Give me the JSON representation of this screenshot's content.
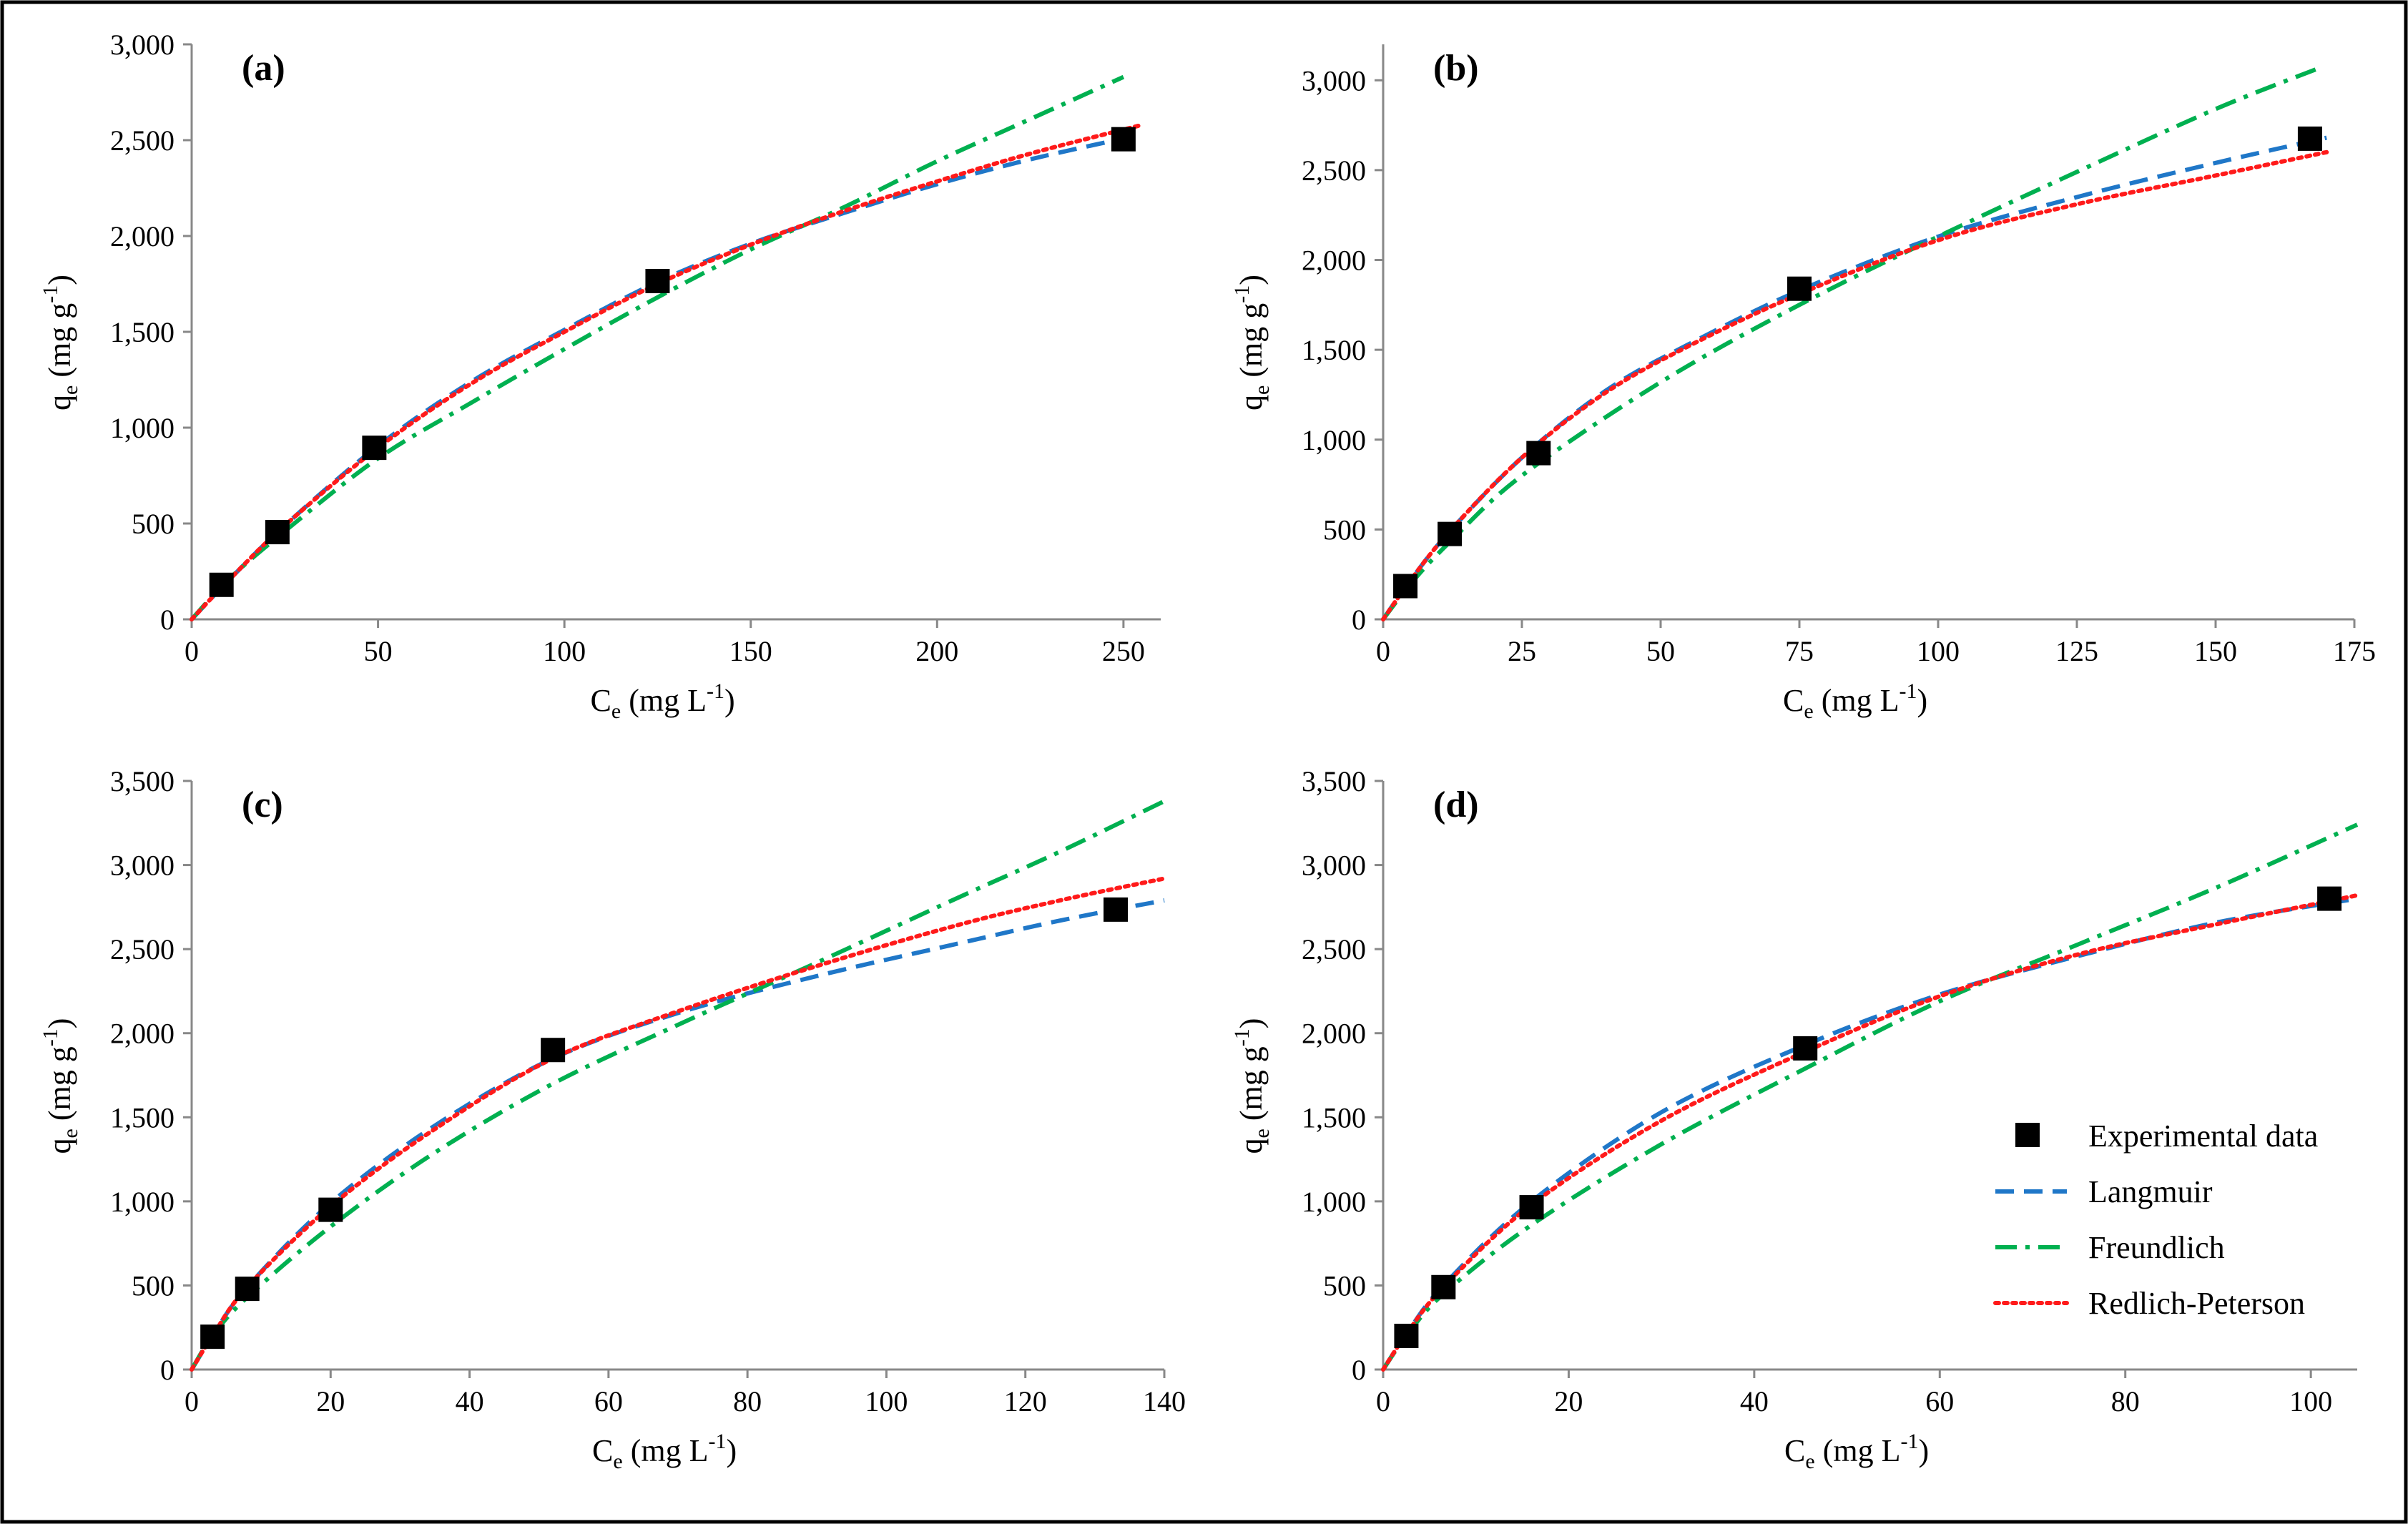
{
  "figure": {
    "colors": {
      "experimental": "#000000",
      "langmuir": "#1f77c8",
      "freundlich": "#00b050",
      "redlich_peterson": "#ff1a1a",
      "axis": "#888888",
      "frame": "#000000"
    },
    "legend": {
      "panel": "d",
      "entries": [
        {
          "key": "experimental",
          "label": "Experimental data"
        },
        {
          "key": "langmuir",
          "label": "Langmuir"
        },
        {
          "key": "freundlich",
          "label": "Freundlich"
        },
        {
          "key": "redlich_peterson",
          "label": "Redlich-Peterson"
        }
      ]
    }
  },
  "chart_data": [
    {
      "id": "a",
      "type": "scatter",
      "panel_label": "(a)",
      "xlabel": "Ce (mg L-1)",
      "ylabel": "qe (mg g-1)",
      "xlim": [
        0,
        260
      ],
      "ylim": [
        0,
        3000
      ],
      "xticks": [
        0,
        50,
        100,
        150,
        200,
        250
      ],
      "xtick_labels": [
        "0",
        "50",
        "100",
        "150",
        "200",
        "250"
      ],
      "yticks": [
        0,
        500,
        1000,
        1500,
        2000,
        2500,
        3000
      ],
      "ytick_labels": [
        "0",
        "500",
        "1,000",
        "1,500",
        "2,000",
        "2,500",
        "3,000"
      ],
      "experimental": {
        "x": [
          8,
          23,
          49,
          125,
          250
        ],
        "y": [
          180,
          455,
          895,
          1765,
          2505
        ]
      },
      "series": [
        {
          "name": "Langmuir",
          "key": "langmuir",
          "x": [
            0,
            10,
            25,
            50,
            75,
            100,
            125,
            150,
            175,
            200,
            225,
            255
          ],
          "y": [
            0,
            205,
            490,
            905,
            1240,
            1510,
            1760,
            1960,
            2120,
            2270,
            2400,
            2530
          ]
        },
        {
          "name": "Freundlich",
          "key": "freundlich",
          "x": [
            0,
            10,
            25,
            50,
            75,
            100,
            125,
            150,
            175,
            200,
            225,
            250
          ],
          "y": [
            0,
            210,
            460,
            840,
            1130,
            1410,
            1680,
            1930,
            2150,
            2390,
            2610,
            2830
          ]
        },
        {
          "name": "Redlich-Peterson",
          "key": "redlich_peterson",
          "x": [
            0,
            10,
            25,
            50,
            75,
            100,
            125,
            150,
            175,
            200,
            225,
            255
          ],
          "y": [
            0,
            205,
            490,
            895,
            1230,
            1500,
            1750,
            1955,
            2130,
            2285,
            2430,
            2580
          ]
        }
      ]
    },
    {
      "id": "b",
      "type": "scatter",
      "panel_label": "(b)",
      "xlabel": "Ce (mg L-1)",
      "ylabel": "qe (mg g-1)",
      "xlim": [
        0,
        175
      ],
      "ylim": [
        0,
        3200
      ],
      "xticks": [
        0,
        25,
        50,
        75,
        100,
        125,
        150,
        175
      ],
      "xtick_labels": [
        "0",
        "25",
        "50",
        "75",
        "100",
        "125",
        "150",
        "175"
      ],
      "yticks": [
        0,
        500,
        1000,
        1500,
        2000,
        2500,
        3000
      ],
      "ytick_labels": [
        "0",
        "500",
        "1,000",
        "1,500",
        "2,000",
        "2,500",
        "3,000"
      ],
      "experimental": {
        "x": [
          4,
          12,
          28,
          75,
          167
        ],
        "y": [
          185,
          475,
          925,
          1840,
          2675
        ]
      },
      "series": [
        {
          "name": "Langmuir",
          "key": "langmuir",
          "x": [
            0,
            5,
            12,
            25,
            40,
            55,
            75,
            100,
            125,
            150,
            170
          ],
          "y": [
            0,
            220,
            490,
            900,
            1270,
            1530,
            1830,
            2130,
            2350,
            2540,
            2680
          ]
        },
        {
          "name": "Freundlich",
          "key": "freundlich",
          "x": [
            0,
            5,
            12,
            25,
            50,
            75,
            100,
            125,
            150,
            168
          ],
          "y": [
            0,
            200,
            430,
            800,
            1320,
            1750,
            2130,
            2490,
            2840,
            3060
          ]
        },
        {
          "name": "Redlich-Peterson",
          "key": "redlich_peterson",
          "x": [
            0,
            5,
            12,
            25,
            40,
            55,
            75,
            100,
            125,
            150,
            170
          ],
          "y": [
            0,
            220,
            490,
            900,
            1260,
            1520,
            1810,
            2110,
            2310,
            2470,
            2600
          ]
        }
      ]
    },
    {
      "id": "c",
      "type": "scatter",
      "panel_label": "(c)",
      "xlabel": "Ce (mg L-1)",
      "ylabel": "qe (mg g-1)",
      "xlim": [
        0,
        140
      ],
      "ylim": [
        0,
        3500
      ],
      "xticks": [
        0,
        20,
        40,
        60,
        80,
        100,
        120,
        140
      ],
      "xtick_labels": [
        "0",
        "20",
        "40",
        "60",
        "80",
        "100",
        "120",
        "140"
      ],
      "yticks": [
        0,
        500,
        1000,
        1500,
        2000,
        2500,
        3000,
        3500
      ],
      "ytick_labels": [
        "0",
        "500",
        "1,000",
        "1,500",
        "2,000",
        "2,500",
        "3,000",
        "3,500"
      ],
      "experimental": {
        "x": [
          3,
          8,
          20,
          52,
          133
        ],
        "y": [
          195,
          480,
          950,
          1900,
          2735
        ]
      },
      "series": [
        {
          "name": "Langmuir",
          "key": "langmuir",
          "x": [
            0,
            3,
            8,
            20,
            35,
            52,
            70,
            90,
            110,
            125,
            140
          ],
          "y": [
            0,
            200,
            490,
            990,
            1450,
            1850,
            2120,
            2340,
            2530,
            2670,
            2790
          ]
        },
        {
          "name": "Freundlich",
          "key": "freundlich",
          "x": [
            0,
            3,
            8,
            20,
            35,
            52,
            70,
            90,
            110,
            125,
            140
          ],
          "y": [
            0,
            200,
            430,
            850,
            1290,
            1700,
            2050,
            2420,
            2800,
            3080,
            3380
          ]
        },
        {
          "name": "Redlich-Peterson",
          "key": "redlich_peterson",
          "x": [
            0,
            3,
            8,
            20,
            35,
            52,
            70,
            90,
            110,
            125,
            140
          ],
          "y": [
            0,
            200,
            490,
            970,
            1430,
            1850,
            2130,
            2400,
            2640,
            2790,
            2920
          ]
        }
      ]
    },
    {
      "id": "d",
      "type": "scatter",
      "panel_label": "(d)",
      "xlabel": "Ce (mg L-1)",
      "ylabel": "qe (mg g-1)",
      "xlim": [
        0,
        105
      ],
      "ylim": [
        0,
        3500
      ],
      "xticks": [
        0,
        20,
        40,
        60,
        80,
        100
      ],
      "xtick_labels": [
        "0",
        "20",
        "40",
        "60",
        "80",
        "100"
      ],
      "yticks": [
        0,
        500,
        1000,
        1500,
        2000,
        2500,
        3000,
        3500
      ],
      "ytick_labels": [
        "0",
        "500",
        "1,000",
        "1,500",
        "2,000",
        "2,500",
        "3,000",
        "3,500"
      ],
      "experimental": {
        "x": [
          2.5,
          6.5,
          16,
          45.5,
          102
        ],
        "y": [
          200,
          490,
          965,
          1910,
          2800
        ]
      },
      "series": [
        {
          "name": "Langmuir",
          "key": "langmuir",
          "x": [
            0,
            2.5,
            6.5,
            16,
            30,
            45.5,
            60,
            75,
            90,
            105
          ],
          "y": [
            0,
            210,
            500,
            1000,
            1530,
            1930,
            2230,
            2460,
            2660,
            2800
          ]
        },
        {
          "name": "Freundlich",
          "key": "freundlich",
          "x": [
            0,
            2.5,
            6.5,
            16,
            30,
            45.5,
            60,
            75,
            90,
            105
          ],
          "y": [
            0,
            200,
            450,
            860,
            1340,
            1790,
            2190,
            2530,
            2870,
            3240
          ]
        },
        {
          "name": "Redlich-Peterson",
          "key": "redlich_peterson",
          "x": [
            0,
            2.5,
            6.5,
            16,
            30,
            45.5,
            60,
            75,
            90,
            105
          ],
          "y": [
            0,
            210,
            490,
            980,
            1480,
            1890,
            2220,
            2470,
            2650,
            2820
          ]
        }
      ]
    }
  ]
}
